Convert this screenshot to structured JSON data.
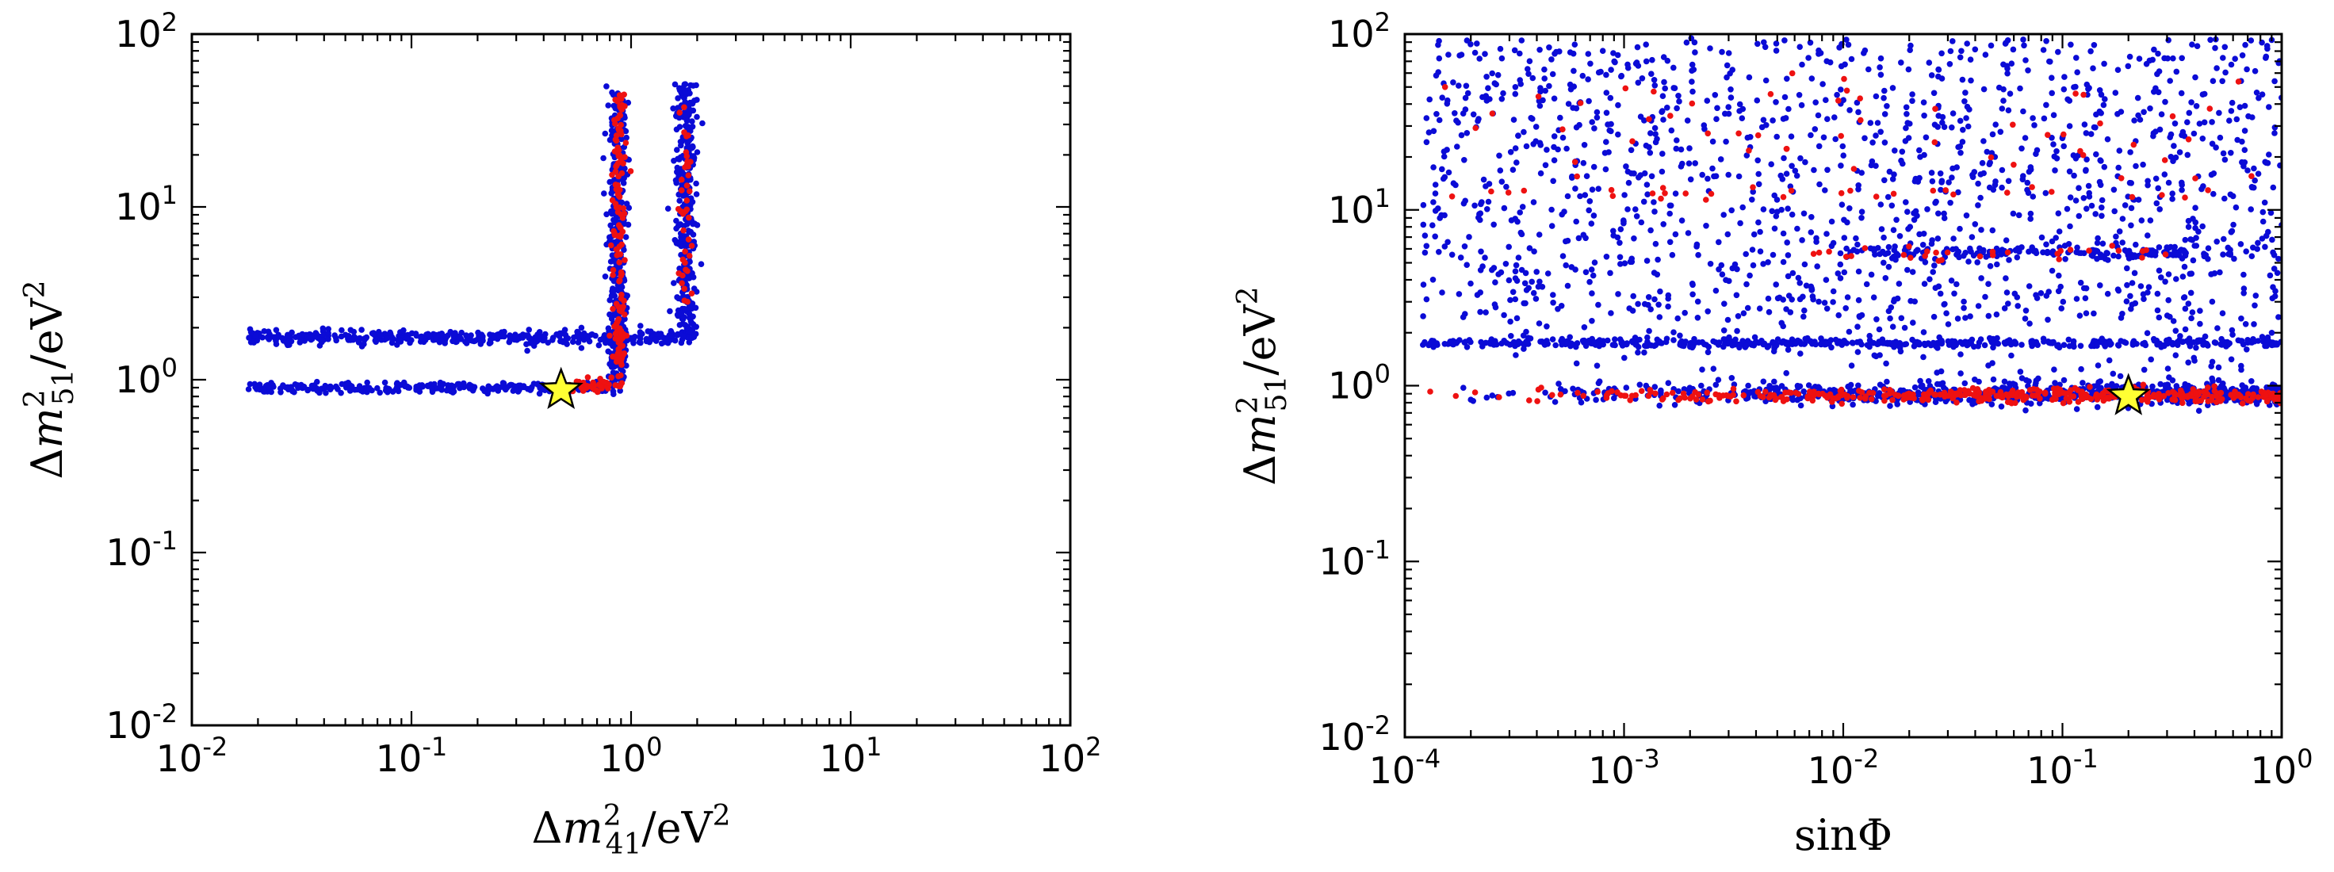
{
  "chart_data": [
    {
      "type": "scatter",
      "title": "",
      "xlabel": "Δm²₄₁/eV²",
      "ylabel": "Δm²₅₁/eV²",
      "xscale": "log",
      "yscale": "log",
      "xlim": [
        0.01,
        100
      ],
      "ylim": [
        0.01,
        100
      ],
      "x_ticks": [
        0.01,
        0.1,
        1,
        10,
        100
      ],
      "y_ticks": [
        0.01,
        0.1,
        1,
        10,
        100
      ],
      "x_tick_labels": [
        [
          "10",
          "-2"
        ],
        [
          "10",
          "-1"
        ],
        [
          "10",
          "0"
        ],
        [
          "10",
          "1"
        ],
        [
          "10",
          "2"
        ]
      ],
      "y_tick_labels": [
        [
          "10",
          "-2"
        ],
        [
          "10",
          "-1"
        ],
        [
          "10",
          "0"
        ],
        [
          "10",
          "1"
        ],
        [
          "10",
          "2"
        ]
      ],
      "colors": {
        "blue": "#0b0bd6",
        "red": "#ee1111",
        "star": "#ffff33"
      },
      "series": [
        {
          "color": "blue",
          "bands": [
            {
              "orientation": "horizontal",
              "y": 1.75,
              "x_range": [
                0.018,
                1.9
              ],
              "spread": 0.02,
              "count": 420
            },
            {
              "orientation": "horizontal",
              "y": 0.9,
              "x_range": [
                0.018,
                0.85
              ],
              "spread": 0.015,
              "count": 260
            },
            {
              "orientation": "vertical",
              "x": 0.87,
              "y_range": [
                0.85,
                50
              ],
              "spread": 0.022,
              "count": 360
            },
            {
              "orientation": "vertical",
              "x": 1.78,
              "y_range": [
                1.75,
                52
              ],
              "spread": 0.025,
              "count": 330
            }
          ]
        },
        {
          "color": "red",
          "bands": [
            {
              "orientation": "vertical",
              "x": 0.88,
              "y_range": [
                0.9,
                45
              ],
              "spread": 0.015,
              "count": 150
            },
            {
              "orientation": "vertical",
              "x": 1.78,
              "y_range": [
                2.5,
                40
              ],
              "spread": 0.015,
              "count": 40
            },
            {
              "orientation": "horizontal",
              "y": 0.92,
              "x_range": [
                0.45,
                0.82
              ],
              "spread": 0.02,
              "count": 45
            }
          ]
        }
      ],
      "best_fit": {
        "x": 0.48,
        "y": 0.87
      }
    },
    {
      "type": "scatter",
      "title": "",
      "xlabel": "sinΦ",
      "ylabel": "Δm²₅₁/eV²",
      "xscale": "log",
      "yscale": "log",
      "xlim": [
        0.0001,
        1
      ],
      "ylim": [
        0.01,
        100
      ],
      "x_ticks": [
        0.0001,
        0.001,
        0.01,
        0.1,
        1
      ],
      "y_ticks": [
        0.01,
        0.1,
        1,
        10,
        100
      ],
      "x_tick_labels": [
        [
          "10",
          "-4"
        ],
        [
          "10",
          "-3"
        ],
        [
          "10",
          "-2"
        ],
        [
          "10",
          "-1"
        ],
        [
          "10",
          "0"
        ]
      ],
      "y_tick_labels": [
        [
          "10",
          "-2"
        ],
        [
          "10",
          "-1"
        ],
        [
          "10",
          "0"
        ],
        [
          "10",
          "1"
        ],
        [
          "10",
          "2"
        ]
      ],
      "colors": {
        "blue": "#0b0bd6",
        "red": "#ee1111",
        "star": "#ffff33"
      },
      "series": [
        {
          "color": "blue",
          "bands": [
            {
              "orientation": "horizontal",
              "y": 1.75,
              "x_range": [
                0.00012,
                1
              ],
              "spread": 0.012,
              "count": 500
            },
            {
              "orientation": "horizontal",
              "y": 0.9,
              "x_range": [
                0.00012,
                1
              ],
              "spread": 0.03,
              "count": 700,
              "density": "increasing"
            },
            {
              "orientation": "horizontal",
              "y": 5.8,
              "x_range": [
                0.01,
                0.6
              ],
              "spread": 0.02,
              "count": 160
            },
            {
              "orientation": "cloud",
              "x_range": [
                0.00012,
                1
              ],
              "y_range": [
                2.4,
                95
              ],
              "count": 1400
            },
            {
              "orientation": "cloud",
              "x_range": [
                0.0003,
                1
              ],
              "y_range": [
                1.0,
                2.4
              ],
              "count": 120
            }
          ]
        },
        {
          "color": "red",
          "bands": [
            {
              "orientation": "horizontal",
              "y": 0.88,
              "x_range": [
                0.00012,
                1
              ],
              "spread": 0.02,
              "count": 420,
              "density": "increasing"
            },
            {
              "orientation": "horizontal",
              "y": 12.5,
              "x_range": [
                0.00015,
                0.5
              ],
              "spread": 0.02,
              "count": 30
            },
            {
              "orientation": "horizontal",
              "y": 5.6,
              "x_range": [
                0.006,
                0.3
              ],
              "spread": 0.02,
              "count": 30
            },
            {
              "orientation": "cloud",
              "x_range": [
                0.00015,
                0.8
              ],
              "y_range": [
                15,
                60
              ],
              "count": 50
            }
          ]
        }
      ],
      "best_fit": {
        "x": 0.2,
        "y": 0.87
      }
    }
  ]
}
